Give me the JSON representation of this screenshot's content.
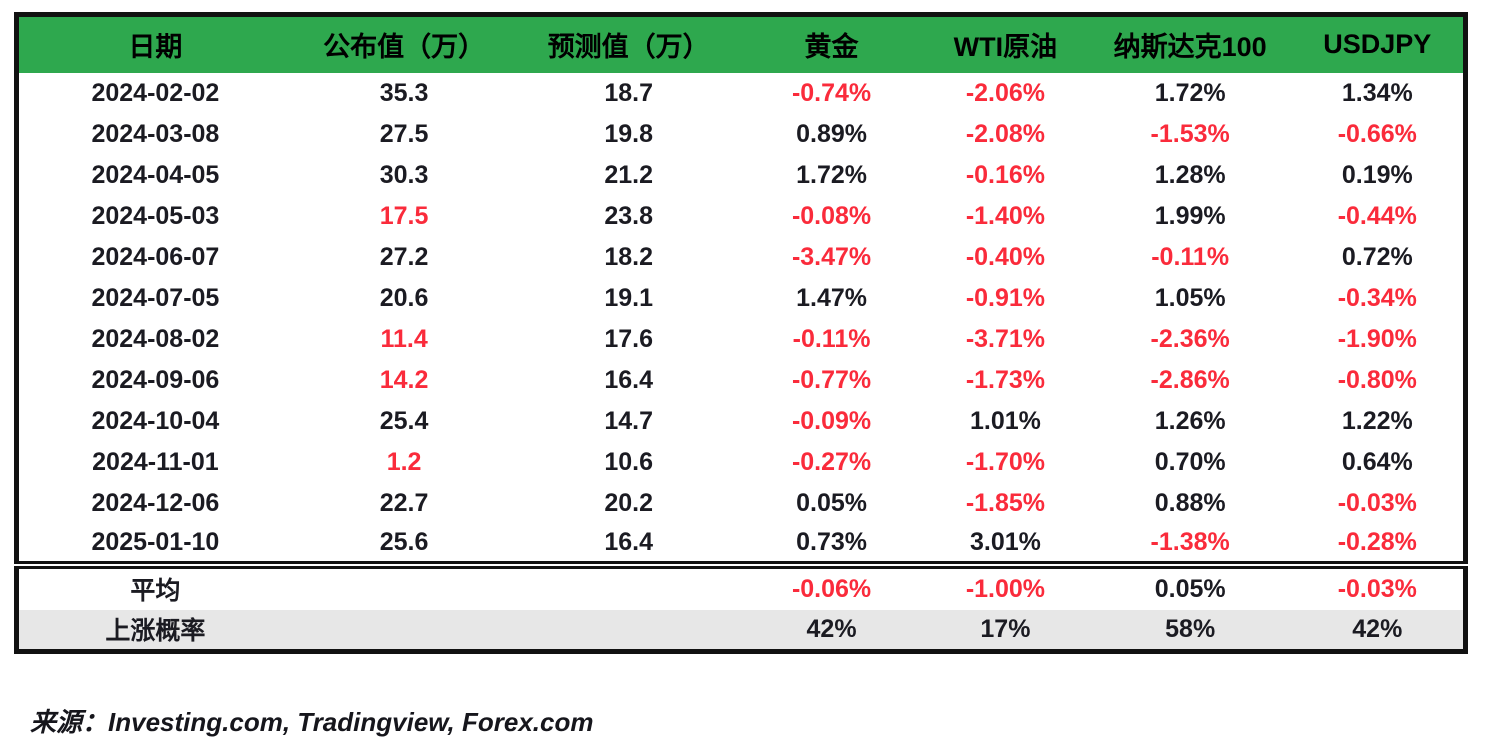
{
  "chart_data": {
    "type": "table",
    "columns": [
      "日期",
      "公布值（万）",
      "预测值（万）",
      "黄金",
      "WTI原油",
      "纳斯达克100",
      "USDJPY"
    ],
    "rows": [
      {
        "values": [
          "2024-02-02",
          "35.3",
          "18.7",
          "-0.74%",
          "-2.06%",
          "1.72%",
          "1.34%"
        ],
        "red": [
          0,
          0,
          0,
          1,
          1,
          0,
          0
        ]
      },
      {
        "values": [
          "2024-03-08",
          "27.5",
          "19.8",
          "0.89%",
          "-2.08%",
          "-1.53%",
          "-0.66%"
        ],
        "red": [
          0,
          0,
          0,
          0,
          1,
          1,
          1
        ]
      },
      {
        "values": [
          "2024-04-05",
          "30.3",
          "21.2",
          "1.72%",
          "-0.16%",
          "1.28%",
          "0.19%"
        ],
        "red": [
          0,
          0,
          0,
          0,
          1,
          0,
          0
        ]
      },
      {
        "values": [
          "2024-05-03",
          "17.5",
          "23.8",
          "-0.08%",
          "-1.40%",
          "1.99%",
          "-0.44%"
        ],
        "red": [
          0,
          1,
          0,
          1,
          1,
          0,
          1
        ]
      },
      {
        "values": [
          "2024-06-07",
          "27.2",
          "18.2",
          "-3.47%",
          "-0.40%",
          "-0.11%",
          "0.72%"
        ],
        "red": [
          0,
          0,
          0,
          1,
          1,
          1,
          0
        ]
      },
      {
        "values": [
          "2024-07-05",
          "20.6",
          "19.1",
          "1.47%",
          "-0.91%",
          "1.05%",
          "-0.34%"
        ],
        "red": [
          0,
          0,
          0,
          0,
          1,
          0,
          1
        ]
      },
      {
        "values": [
          "2024-08-02",
          "11.4",
          "17.6",
          "-0.11%",
          "-3.71%",
          "-2.36%",
          "-1.90%"
        ],
        "red": [
          0,
          1,
          0,
          1,
          1,
          1,
          1
        ]
      },
      {
        "values": [
          "2024-09-06",
          "14.2",
          "16.4",
          "-0.77%",
          "-1.73%",
          "-2.86%",
          "-0.80%"
        ],
        "red": [
          0,
          1,
          0,
          1,
          1,
          1,
          1
        ]
      },
      {
        "values": [
          "2024-10-04",
          "25.4",
          "14.7",
          "-0.09%",
          "1.01%",
          "1.26%",
          "1.22%"
        ],
        "red": [
          0,
          0,
          0,
          1,
          0,
          0,
          0
        ]
      },
      {
        "values": [
          "2024-11-01",
          "1.2",
          "10.6",
          "-0.27%",
          "-1.70%",
          "0.70%",
          "0.64%"
        ],
        "red": [
          0,
          1,
          0,
          1,
          1,
          0,
          0
        ]
      },
      {
        "values": [
          "2024-12-06",
          "22.7",
          "20.2",
          "0.05%",
          "-1.85%",
          "0.88%",
          "-0.03%"
        ],
        "red": [
          0,
          0,
          0,
          0,
          1,
          0,
          1
        ]
      },
      {
        "values": [
          "2025-01-10",
          "25.6",
          "16.4",
          "0.73%",
          "3.01%",
          "-1.38%",
          "-0.28%"
        ],
        "red": [
          0,
          0,
          0,
          0,
          0,
          1,
          1
        ]
      }
    ],
    "summary_rows": [
      {
        "name": "average",
        "values": [
          "平均",
          "",
          "",
          "-0.06%",
          "-1.00%",
          "0.05%",
          "-0.03%"
        ],
        "red": [
          0,
          0,
          0,
          1,
          1,
          0,
          1
        ]
      },
      {
        "name": "rise-probability",
        "values": [
          "上涨概率",
          "",
          "",
          "42%",
          "17%",
          "58%",
          "42%"
        ],
        "red": [
          0,
          0,
          0,
          0,
          0,
          0,
          0
        ]
      }
    ],
    "source_label": "来源：",
    "source_list": "Investing.com, Tradingview, Forex.com"
  },
  "colors": {
    "header_bg": "#2EA84E",
    "negative_red": "#FA2B3B",
    "text": "#1B1B22",
    "probability_row_bg": "#E7E7E7",
    "border": "#111111"
  }
}
